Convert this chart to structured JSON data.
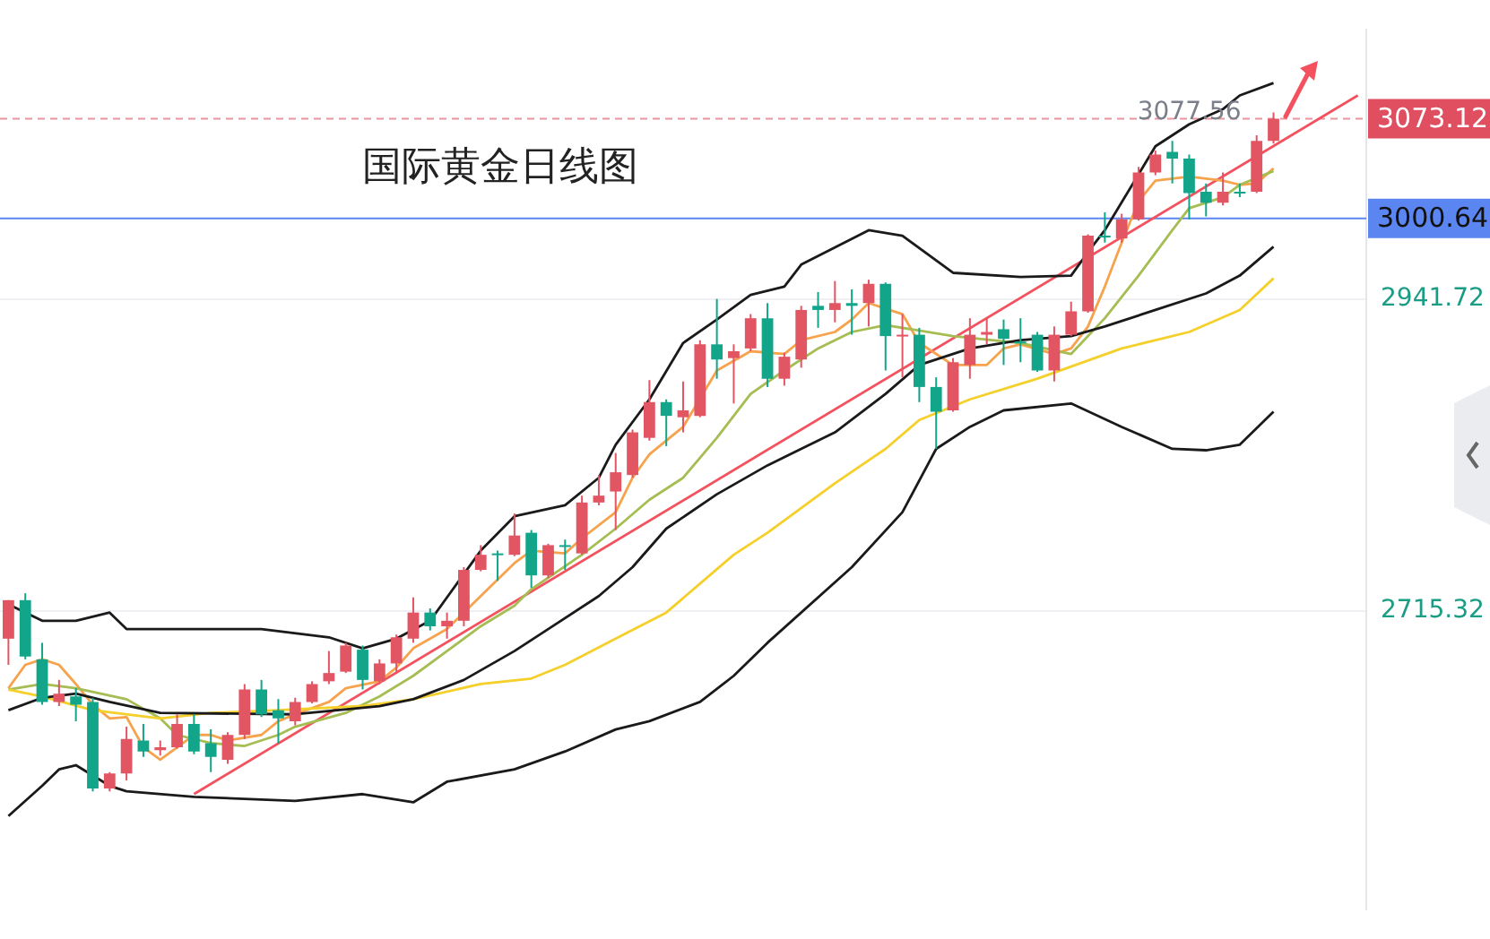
{
  "chart_data": {
    "type": "candlestick",
    "title": "国际黄金日线图",
    "categories": [
      null,
      null,
      null,
      null,
      null,
      null,
      null,
      null,
      null,
      null,
      null,
      null,
      null,
      null,
      null,
      null,
      null,
      null,
      null,
      null,
      null,
      null,
      null,
      null,
      null,
      null,
      null,
      null,
      null,
      null,
      null,
      null,
      null,
      null,
      null,
      null,
      null,
      null,
      null,
      null,
      null,
      null,
      null,
      null,
      null,
      null,
      null,
      null,
      null,
      null,
      null,
      null,
      null,
      null,
      null,
      null,
      null,
      null,
      null,
      null,
      null,
      null,
      null,
      null,
      null,
      null,
      null,
      null,
      null,
      null,
      null,
      null,
      null,
      null,
      null,
      null,
      null,
      null,
      null,
      null,
      null
    ],
    "ohlc": [
      [
        2695,
        2723,
        2676,
        2723
      ],
      [
        2723,
        2728,
        2680,
        2682
      ],
      [
        2680,
        2692,
        2647,
        2649
      ],
      [
        2649,
        2665,
        2646,
        2655
      ],
      [
        2653,
        2659,
        2635,
        2647
      ],
      [
        2649,
        2652,
        2584,
        2586
      ],
      [
        2586,
        2598,
        2584,
        2597
      ],
      [
        2597,
        2631,
        2592,
        2622
      ],
      [
        2621,
        2633,
        2609,
        2613
      ],
      [
        2614,
        2621,
        2610,
        2616
      ],
      [
        2616,
        2640,
        2615,
        2633
      ],
      [
        2633,
        2640,
        2611,
        2613
      ],
      [
        2619,
        2629,
        2598,
        2609
      ],
      [
        2607,
        2627,
        2604,
        2625
      ],
      [
        2625,
        2662,
        2622,
        2658
      ],
      [
        2658,
        2665,
        2638,
        2640
      ],
      [
        2643,
        2651,
        2619,
        2637
      ],
      [
        2635,
        2652,
        2632,
        2649
      ],
      [
        2649,
        2664,
        2648,
        2662
      ],
      [
        2664,
        2686,
        2662,
        2670
      ],
      [
        2671,
        2692,
        2670,
        2690
      ],
      [
        2687,
        2690,
        2658,
        2665
      ],
      [
        2664,
        2680,
        2662,
        2677
      ],
      [
        2677,
        2698,
        2671,
        2696
      ],
      [
        2695,
        2725,
        2692,
        2714
      ],
      [
        2714,
        2717,
        2701,
        2704
      ],
      [
        2704,
        2714,
        2695,
        2708
      ],
      [
        2708,
        2747,
        2704,
        2745
      ],
      [
        2745,
        2763,
        2744,
        2756
      ],
      [
        2757,
        2759,
        2737,
        2756
      ],
      [
        2756,
        2786,
        2755,
        2770
      ],
      [
        2772,
        2774,
        2732,
        2741
      ],
      [
        2741,
        2764,
        2739,
        2763
      ],
      [
        2763,
        2767,
        2745,
        2762
      ],
      [
        2757,
        2799,
        2756,
        2794
      ],
      [
        2794,
        2814,
        2792,
        2799
      ],
      [
        2802,
        2830,
        2774,
        2816
      ],
      [
        2814,
        2847,
        2812,
        2845
      ],
      [
        2841,
        2883,
        2839,
        2867
      ],
      [
        2867,
        2869,
        2835,
        2857
      ],
      [
        2856,
        2882,
        2845,
        2861
      ],
      [
        2857,
        2912,
        2856,
        2909
      ],
      [
        2909,
        2942,
        2884,
        2898
      ],
      [
        2899,
        2909,
        2866,
        2904
      ],
      [
        2906,
        2931,
        2904,
        2928
      ],
      [
        2928,
        2939,
        2878,
        2884
      ],
      [
        2884,
        2903,
        2879,
        2900
      ],
      [
        2898,
        2937,
        2892,
        2934
      ],
      [
        2937,
        2947,
        2921,
        2934
      ],
      [
        2934,
        2955,
        2925,
        2939
      ],
      [
        2939,
        2949,
        2916,
        2937
      ],
      [
        2939,
        2956,
        2922,
        2953
      ],
      [
        2953,
        2954,
        2890,
        2915
      ],
      [
        2915,
        2931,
        2885,
        2916
      ],
      [
        2916,
        2921,
        2867,
        2878
      ],
      [
        2878,
        2885,
        2833,
        2860
      ],
      [
        2861,
        2899,
        2860,
        2896
      ],
      [
        2894,
        2928,
        2884,
        2916
      ],
      [
        2916,
        2928,
        2909,
        2918
      ],
      [
        2920,
        2927,
        2894,
        2913
      ],
      [
        2911,
        2928,
        2896,
        2910
      ],
      [
        2916,
        2918,
        2889,
        2890
      ],
      [
        2890,
        2922,
        2882,
        2916
      ],
      [
        2916,
        2940,
        2915,
        2933
      ],
      [
        2933,
        2989,
        2932,
        2988
      ],
      [
        2988,
        3005,
        2983,
        2987
      ],
      [
        2986,
        3004,
        2983,
        3000
      ],
      [
        3000,
        3038,
        2999,
        3034
      ],
      [
        3034,
        3050,
        3032,
        3047
      ],
      [
        3049,
        3057,
        3026,
        3044
      ],
      [
        3044,
        3047,
        3000,
        3019
      ],
      [
        3020,
        3026,
        3002,
        3012
      ],
      [
        3012,
        3034,
        3010,
        3020
      ],
      [
        3020,
        3026,
        3016,
        3019
      ],
      [
        3020,
        3061,
        3019,
        3057
      ],
      [
        3057,
        3077.56,
        3055,
        3073.12
      ],
      null,
      null,
      null,
      null,
      null
    ],
    "colors": [
      "#e25563",
      "#12a58a",
      "#12a58a",
      "#e25563",
      "#12a58a",
      "#12a58a",
      "#e25563",
      "#e25563",
      "#12a58a",
      "#e25563",
      "#e25563",
      "#12a58a",
      "#12a58a",
      "#e25563",
      "#e25563",
      "#12a58a",
      "#12a58a",
      "#e25563",
      "#e25563",
      "#e25563",
      "#e25563",
      "#12a58a",
      "#e25563",
      "#e25563",
      "#e25563",
      "#12a58a",
      "#e25563",
      "#e25563",
      "#e25563",
      "#12a58a",
      "#e25563",
      "#12a58a",
      "#e25563",
      "#12a58a",
      "#e25563",
      "#e25563",
      "#e25563",
      "#e25563",
      "#e25563",
      "#12a58a",
      "#e25563",
      "#e25563",
      "#12a58a",
      "#e25563",
      "#e25563",
      "#12a58a",
      "#e25563",
      "#e25563",
      "#12a58a",
      "#e25563",
      "#12a58a",
      "#e25563",
      "#12a58a",
      "#e25563",
      "#12a58a",
      "#12a58a",
      "#e25563",
      "#e25563",
      "#e25563",
      "#12a58a",
      "#12a58a",
      "#12a58a",
      "#e25563",
      "#e25563",
      "#e25563",
      "#12a58a",
      "#e25563",
      "#e25563",
      "#e25563",
      "#12a58a",
      "#12a58a",
      "#12a58a",
      "#e25563",
      "#12a58a",
      "#e25563",
      "#e25563",
      null,
      null,
      null,
      null,
      null
    ],
    "series": [
      {
        "type": "line",
        "color": "#1a1a1a",
        "values": [
          2720,
          null,
          2708,
          null,
          2708,
          null,
          2714,
          2702,
          null,
          null,
          null,
          null,
          null,
          null,
          null,
          2702,
          null,
          null,
          null,
          2696,
          null,
          2688,
          null,
          2695,
          null,
          2708,
          2725,
          null,
          2759,
          null,
          2784,
          null,
          null,
          2792,
          null,
          2812,
          2836,
          null,
          2869,
          null,
          2910,
          null,
          2927,
          null,
          2945,
          null,
          2951,
          2967,
          null,
          null,
          null,
          2992,
          null,
          2988,
          null,
          null,
          2961,
          null,
          null,
          null,
          2958,
          null,
          null,
          2959,
          2976,
          2992,
          null,
          null,
          3053,
          null,
          3069,
          null,
          3080,
          3090,
          null,
          3099,
          null,
          null,
          null,
          null,
          null
        ]
      },
      {
        "type": "line",
        "color": "#1a1a1a",
        "values": [
          2643,
          null,
          2652,
          null,
          2655,
          null,
          2649,
          null,
          null,
          2641,
          null,
          null,
          null,
          null,
          null,
          null,
          null,
          2640,
          null,
          null,
          null,
          null,
          2646,
          null,
          2651,
          null,
          null,
          2665,
          null,
          null,
          2686,
          null,
          2702,
          null,
          null,
          2726,
          null,
          2747,
          null,
          2775,
          null,
          null,
          2800,
          null,
          null,
          2821,
          null,
          null,
          null,
          2845,
          null,
          null,
          2873,
          null,
          2894,
          null,
          null,
          2906,
          null,
          null,
          2912,
          null,
          null,
          2915,
          null,
          2922,
          null,
          null,
          2934,
          null,
          null,
          2946,
          null,
          2959,
          null,
          2980,
          null,
          null,
          null,
          null,
          null
        ]
      },
      {
        "type": "line",
        "color": "#1a1a1a",
        "values": [
          2566,
          null,
          2588,
          2600,
          2603,
          null,
          2588,
          2584,
          null,
          null,
          null,
          2580,
          null,
          null,
          null,
          null,
          null,
          2577,
          null,
          null,
          null,
          2582,
          null,
          null,
          2576,
          null,
          2591,
          null,
          null,
          null,
          2600,
          null,
          null,
          2613,
          null,
          null,
          2629,
          null,
          2635,
          null,
          null,
          2649,
          null,
          2668,
          null,
          2692,
          null,
          null,
          null,
          null,
          2747,
          null,
          null,
          2787,
          null,
          2833,
          null,
          2849,
          null,
          2861,
          null,
          null,
          null,
          2866,
          null,
          null,
          2849,
          null,
          null,
          2833,
          null,
          2832,
          null,
          2836,
          null,
          2860,
          null,
          null,
          null,
          null,
          null
        ]
      },
      {
        "type": "line",
        "color": "#f5cf2a",
        "values": [
          2658,
          null,
          2653,
          null,
          null,
          2643,
          null,
          null,
          null,
          2637,
          null,
          null,
          2641,
          null,
          null,
          null,
          2643,
          null,
          null,
          null,
          null,
          2646,
          null,
          null,
          2651,
          null,
          null,
          null,
          2662,
          null,
          null,
          2666,
          null,
          2676,
          null,
          null,
          2695,
          null,
          null,
          2714,
          null,
          2735,
          null,
          2756,
          null,
          2772,
          null,
          null,
          null,
          2808,
          null,
          null,
          2833,
          null,
          2854,
          null,
          null,
          2869,
          null,
          null,
          null,
          2884,
          null,
          null,
          null,
          null,
          2906,
          null,
          null,
          null,
          2918,
          null,
          null,
          2934,
          null,
          2957,
          null,
          null,
          null,
          null,
          null
        ]
      },
      {
        "type": "line",
        "color": "#a5bd52",
        "values": [
          2658,
          null,
          2662,
          null,
          2659,
          null,
          null,
          2651,
          null,
          2637,
          2625,
          null,
          2619,
          null,
          2617,
          null,
          2625,
          2631,
          null,
          null,
          2641,
          null,
          2653,
          null,
          2668,
          null,
          2686,
          null,
          2704,
          null,
          2719,
          2731,
          null,
          null,
          2756,
          null,
          2775,
          null,
          2796,
          null,
          2812,
          null,
          2841,
          null,
          2873,
          null,
          2890,
          null,
          2906,
          null,
          2918,
          null,
          2923,
          null,
          null,
          null,
          2915,
          null,
          null,
          null,
          2910,
          null,
          null,
          2902,
          null,
          2928,
          null,
          2959,
          null,
          2992,
          3008,
          null,
          3016,
          3025,
          null,
          3035,
          null,
          null,
          null,
          null,
          null
        ]
      },
      {
        "type": "line",
        "color": "#f7a24c",
        "values": [
          2659,
          2676,
          2680,
          2676,
          2662,
          2647,
          2637,
          2638,
          2616,
          2607,
          2616,
          2625,
          2625,
          2621,
          null,
          2625,
          2635,
          2640,
          null,
          2649,
          2659,
          null,
          2664,
          2674,
          2688,
          null,
          2702,
          null,
          2726,
          null,
          2750,
          2759,
          null,
          2757,
          2768,
          null,
          2787,
          2812,
          2829,
          null,
          2849,
          null,
          2890,
          null,
          2904,
          null,
          2902,
          2912,
          null,
          2918,
          2927,
          2939,
          null,
          2931,
          2910,
          null,
          2894,
          null,
          2894,
          2906,
          2909,
          null,
          2902,
          2906,
          2922,
          2951,
          2983,
          3013,
          3028,
          null,
          3031,
          null,
          3028,
          3025,
          3026,
          3037,
          null,
          null,
          null,
          null,
          null
        ]
      },
      {
        "type": "line",
        "color": "#f4515f",
        "values": [
          null,
          null,
          null,
          null,
          null,
          null,
          null,
          null,
          null,
          null,
          null,
          2582,
          null,
          null,
          null,
          null,
          null,
          null,
          null,
          null,
          null,
          null,
          null,
          null,
          null,
          null,
          null,
          null,
          null,
          null,
          null,
          null,
          null,
          null,
          null,
          null,
          null,
          null,
          null,
          null,
          null,
          null,
          null,
          null,
          null,
          null,
          null,
          null,
          null,
          null,
          null,
          null,
          null,
          null,
          null,
          null,
          null,
          null,
          null,
          null,
          null,
          null,
          null,
          null,
          null,
          null,
          null,
          null,
          null,
          null,
          null,
          null,
          null,
          null,
          null,
          null,
          null,
          null,
          null,
          null,
          3090
        ]
      }
    ],
    "ylim": [
      2498,
      3138
    ],
    "yticks": [
      2941.72,
      2715.32
    ],
    "grid": "y",
    "tick_labels": "y",
    "ref_lines": [
      {
        "axis": "y",
        "value": 3000.64,
        "label": "3000.64",
        "color": "#5b86f2"
      },
      {
        "axis": "y",
        "value": 3073.12,
        "label": "3073.12",
        "color": "#e04f5f",
        "line_style": "dashed"
      }
    ],
    "annotations": [
      {
        "text": "3077.56",
        "y": 3077.56
      }
    ]
  }
}
